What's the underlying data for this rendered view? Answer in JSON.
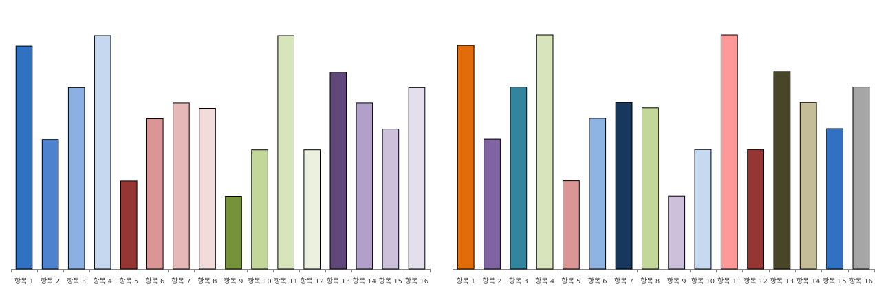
{
  "chart_data": [
    {
      "type": "bar",
      "title": "",
      "xlabel": "",
      "ylabel": "",
      "categories": [
        "항목 1",
        "항목 2",
        "항목 3",
        "항목 4",
        "항목 5",
        "항목 6",
        "항목 7",
        "항목 8",
        "항목 9",
        "항목 10",
        "항목 11",
        "항목 12",
        "항목 13",
        "항목 14",
        "항목 15",
        "항목 16"
      ],
      "values": [
        86,
        50,
        70,
        90,
        34,
        58,
        64,
        62,
        28,
        46,
        90,
        46,
        76,
        64,
        54,
        70
      ],
      "ylim": [
        0,
        100
      ],
      "grid": false,
      "colors": [
        "#3171C1",
        "#4E82CE",
        "#8CB0E2",
        "#C6D7F0",
        "#963634",
        "#DA9694",
        "#E6B8B7",
        "#F2DCDB",
        "#76933C",
        "#C4D79B",
        "#D8E4BC",
        "#EBF1DE",
        "#60497A",
        "#B1A0C7",
        "#CCC0DA",
        "#E4DFEC"
      ]
    },
    {
      "type": "bar",
      "title": "",
      "xlabel": "",
      "ylabel": "",
      "categories": [
        "항목 1",
        "항목 2",
        "항목 3",
        "항목 4",
        "항목 5",
        "항목 6",
        "항목 7",
        "항목 8",
        "항목 9",
        "항목 10",
        "항목 11",
        "항목 12",
        "항목 13",
        "항목 14",
        "항목 15",
        "항목 16"
      ],
      "values": [
        86,
        50,
        70,
        90,
        34,
        58,
        64,
        62,
        28,
        46,
        90,
        46,
        76,
        64,
        54,
        70
      ],
      "ylim": [
        0,
        100
      ],
      "grid": false,
      "colors": [
        "#E26B0A",
        "#8064A2",
        "#31859C",
        "#D8E4BC",
        "#DA9694",
        "#8DB4E2",
        "#17375D",
        "#C4D79B",
        "#CCC0DA",
        "#C5D9F1",
        "#FF9999",
        "#963634",
        "#494529",
        "#C4BD97",
        "#3171C1",
        "#A6A6A6"
      ]
    }
  ]
}
